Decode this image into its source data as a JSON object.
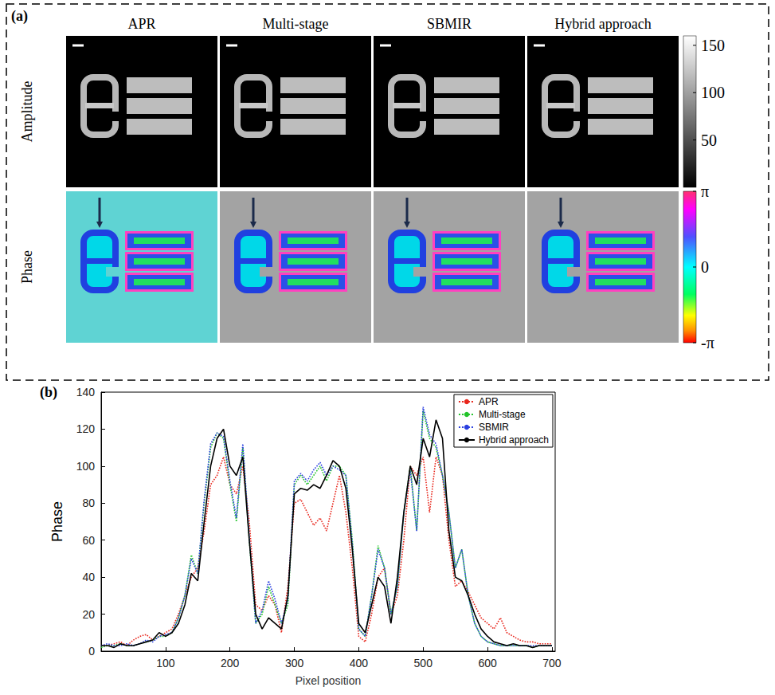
{
  "panel_a": {
    "label": "(a)",
    "columns": [
      "APR",
      "Multi-stage",
      "SBMIR",
      "Hybrid approach"
    ],
    "rows": [
      "Amplitude",
      "Phase"
    ],
    "amplitude_colorbar": {
      "range": [
        0,
        160
      ],
      "ticks": [
        50,
        100,
        150
      ]
    },
    "phase_colorbar": {
      "range": [
        -3.14159,
        3.14159
      ],
      "ticks": [
        {
          "value": -3.14159,
          "label": "-π"
        },
        {
          "value": 0,
          "label": "0"
        },
        {
          "value": 3.14159,
          "label": "π"
        }
      ]
    }
  },
  "chart_data": {
    "label": "(b)",
    "type": "line",
    "x_label": "Pixel position",
    "y_label": "Phase",
    "x": [
      0,
      10,
      20,
      30,
      40,
      50,
      60,
      70,
      80,
      90,
      100,
      110,
      120,
      130,
      140,
      150,
      160,
      170,
      180,
      190,
      200,
      210,
      220,
      230,
      240,
      250,
      260,
      270,
      280,
      290,
      300,
      310,
      320,
      330,
      340,
      350,
      360,
      370,
      380,
      390,
      400,
      410,
      420,
      430,
      440,
      450,
      460,
      470,
      480,
      490,
      500,
      510,
      520,
      530,
      540,
      550,
      560,
      570,
      580,
      590,
      600,
      610,
      620,
      630,
      640,
      650,
      660,
      670,
      680,
      690,
      700
    ],
    "series": [
      {
        "name": "APR",
        "color": "#e8261c",
        "line_style": "dotted",
        "values": [
          3,
          3,
          4,
          5,
          3,
          6,
          8,
          9,
          6,
          8,
          10,
          12,
          20,
          30,
          40,
          45,
          65,
          90,
          95,
          105,
          90,
          85,
          100,
          70,
          25,
          22,
          30,
          25,
          10,
          35,
          80,
          82,
          75,
          68,
          72,
          65,
          80,
          95,
          75,
          45,
          8,
          5,
          20,
          40,
          45,
          20,
          30,
          60,
          100,
          95,
          105,
          75,
          105,
          95,
          60,
          35,
          38,
          32,
          25,
          18,
          15,
          12,
          18,
          10,
          8,
          6,
          5,
          5,
          4,
          4,
          4
        ]
      },
      {
        "name": "Multi-stage",
        "color": "#22c32a",
        "line_style": "dotted",
        "values": [
          2,
          3,
          3,
          4,
          3,
          3,
          4,
          5,
          6,
          8,
          8,
          10,
          18,
          30,
          52,
          42,
          80,
          110,
          118,
          115,
          90,
          70,
          110,
          60,
          15,
          20,
          35,
          25,
          15,
          25,
          90,
          95,
          90,
          95,
          100,
          92,
          100,
          100,
          95,
          60,
          12,
          8,
          30,
          57,
          45,
          20,
          35,
          75,
          100,
          65,
          130,
          115,
          110,
          95,
          75,
          45,
          55,
          30,
          15,
          8,
          5,
          4,
          3,
          3,
          3,
          3,
          3,
          2,
          3,
          3,
          3
        ]
      },
      {
        "name": "SBMIR",
        "color": "#2a3fe0",
        "line_style": "dotted",
        "values": [
          3,
          4,
          3,
          3,
          4,
          3,
          4,
          6,
          5,
          8,
          9,
          10,
          18,
          30,
          50,
          42,
          82,
          112,
          118,
          116,
          92,
          72,
          112,
          62,
          15,
          22,
          38,
          28,
          15,
          28,
          92,
          96,
          92,
          98,
          102,
          95,
          100,
          98,
          95,
          58,
          12,
          8,
          30,
          55,
          45,
          20,
          35,
          75,
          98,
          65,
          132,
          117,
          112,
          95,
          75,
          45,
          55,
          30,
          15,
          8,
          5,
          4,
          3,
          3,
          3,
          3,
          3,
          3,
          3,
          3,
          3
        ]
      },
      {
        "name": "Hybrid approach",
        "color": "#000000",
        "line_style": "solid",
        "values": [
          3,
          3,
          2,
          4,
          3,
          3,
          4,
          5,
          6,
          10,
          8,
          10,
          15,
          25,
          42,
          38,
          70,
          100,
          115,
          120,
          100,
          95,
          105,
          60,
          20,
          12,
          18,
          15,
          12,
          30,
          85,
          88,
          87,
          90,
          88,
          95,
          103,
          100,
          88,
          55,
          15,
          10,
          25,
          40,
          35,
          15,
          40,
          75,
          100,
          90,
          115,
          105,
          125,
          115,
          65,
          40,
          38,
          30,
          20,
          12,
          8,
          5,
          4,
          3,
          4,
          3,
          3,
          2,
          3,
          3,
          3
        ]
      }
    ],
    "xlim": [
      0,
      705
    ],
    "xticks": [
      100,
      200,
      300,
      400,
      500,
      600,
      700
    ],
    "ylim": [
      0,
      140
    ],
    "yticks": [
      0,
      20,
      40,
      60,
      80,
      100,
      120,
      140
    ],
    "legend": "upper right",
    "grid": false
  }
}
